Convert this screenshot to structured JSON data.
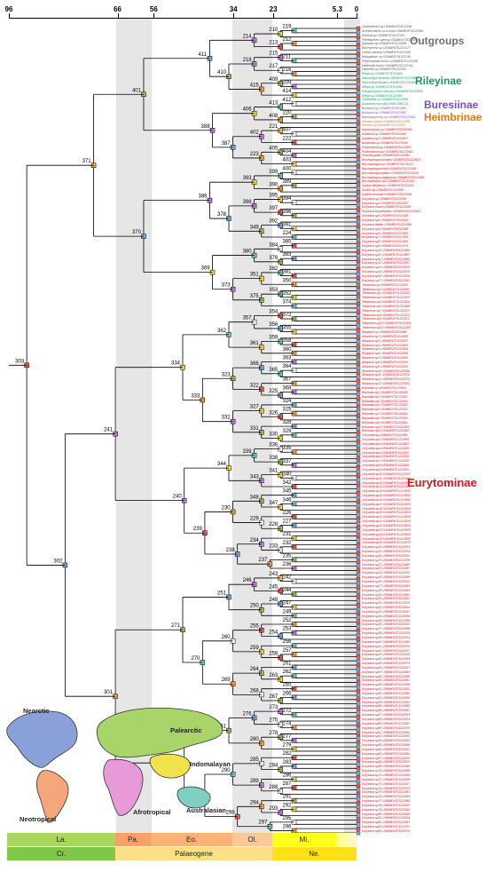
{
  "axis": {
    "ticks": [
      {
        "label": "96",
        "age": 96
      },
      {
        "label": "66",
        "age": 66
      },
      {
        "label": "56",
        "age": 56
      },
      {
        "label": "34",
        "age": 34
      },
      {
        "label": "23",
        "age": 23
      },
      {
        "label": "5.3",
        "age": 5.3
      },
      {
        "label": "0",
        "age": 0
      }
    ]
  },
  "groups": {
    "outgroups": "Outgroups",
    "rileyinae": "Rileyinae",
    "buresiinae": "Buresiinae",
    "heimbrinae": "Heimbrinae",
    "eurytominae": "Eurytominae"
  },
  "node_labels": [
    "219",
    "210",
    "212",
    "213",
    "214",
    "211",
    "215",
    "216",
    "217",
    "218",
    "209",
    "409",
    "414",
    "415",
    "410",
    "411",
    "412",
    "413",
    "220",
    "408",
    "406",
    "407",
    "221",
    "222",
    "402",
    "404",
    "405",
    "403",
    "223",
    "387",
    "388",
    "401",
    "400",
    "399",
    "389",
    "390",
    "393",
    "394",
    "395",
    "396",
    "397",
    "398",
    "391",
    "392",
    "224",
    "349",
    "378",
    "386",
    "385",
    "384",
    "383",
    "379",
    "380",
    "381",
    "382",
    "350",
    "351",
    "352",
    "353",
    "374",
    "375",
    "373",
    "369",
    "370",
    "371",
    "372",
    "354",
    "355",
    "356",
    "357",
    "358",
    "359",
    "360",
    "361",
    "362",
    "363",
    "364",
    "365",
    "366",
    "367",
    "368",
    "225",
    "322",
    "323",
    "324",
    "325",
    "326",
    "327",
    "328",
    "329",
    "330",
    "331",
    "332",
    "333",
    "334",
    "335",
    "336",
    "337",
    "338",
    "339",
    "340",
    "341",
    "342",
    "343",
    "344",
    "345",
    "346",
    "347",
    "348",
    "226",
    "227",
    "228",
    "229",
    "230",
    "231",
    "232",
    "233",
    "234",
    "235",
    "236",
    "237",
    "238",
    "239",
    "240",
    "241",
    "242",
    "243",
    "244",
    "245",
    "246",
    "247",
    "248",
    "249",
    "250",
    "251",
    "252",
    "253",
    "254",
    "255",
    "256",
    "257",
    "258",
    "259",
    "260",
    "261",
    "262",
    "263",
    "264",
    "265",
    "266",
    "267",
    "268",
    "269",
    "270",
    "271",
    "272",
    "273",
    "274",
    "275",
    "276",
    "277",
    "278",
    "279",
    "280",
    "281",
    "282",
    "283",
    "284",
    "285",
    "286",
    "287",
    "288",
    "289",
    "290",
    "291",
    "292",
    "293",
    "294",
    "295",
    "296",
    "297",
    "298",
    "299",
    "300",
    "301",
    "302",
    "303",
    "304",
    "305",
    "306",
    "307",
    "308",
    "309",
    "310",
    "311",
    "312",
    "313",
    "314",
    "315",
    "316",
    "317",
    "318",
    "319",
    "320",
    "321"
  ],
  "taxa": [
    "Chalcedectus sp USNMENT01222995",
    "Acerbiochalcis sp nr keris USNMENT01222966",
    "Dirhinus sp USNMENT01222157",
    "Phlebopenes spinosa USNMENT01222860",
    "Epitranus sp USNMENT01223084",
    "Brachymeria sp USNMENT01222177",
    "Chalcis barbara USNMENT01222182",
    "Notaspidium sp USNMENT01222138",
    "Peltochalcidia bicolor USNMENT01222168",
    "Haltichella bicolor USNMENT01222162",
    "Halticella sp USNMENT01222163",
    "Rileya sp USNMENT01222866",
    "Macrorileya oecanthi USNMENT01222988",
    "Macrorileya flavipes USNMENT01222993",
    "Rileya sp USNMENT01222854",
    "Pseudotorymus cubensis USNMENT01222856",
    "Rileya sp USNMENT01222990",
    "Chalcidella sp USNMENT01222851",
    "Austrotorymus indus RMO-0000131",
    "Buresium sp USNMENT01222903",
    "Buresium sp USNMENT01222952",
    "Macrodasyceras sp USNMENT01222944",
    "Heimbra opaca USNMENT01222958",
    "Heimbra sp USNMENT01222935",
    "Aiolomorphus sp USNMENT01222905",
    "Axanthea sp USNMENT01222940",
    "Axanthea sp2 USNMENT01222947",
    "Aplatoides sp USNMENT01223050",
    "Prodecatoma sp USNMENT01222851",
    "Prodecatoma sp2 USNMENT01222962",
    "Ficomila gallae USNMENT01222845",
    "Bruchophagus funebris USNMENT01222928",
    "Bruchophagus sp USNMENT01223013",
    "Bruchophagus roddi USNMENT01222951",
    "Bruchophagus gibbus USNMENT01222918",
    "Bruchophagus platypterus USNMENT01222999",
    "Bruchophagus sp2 USNMENT01222942",
    "Systole albipennis USNMENT01222925",
    "Systole sp USNMENT01222926",
    "Systole coriandri USNMENT01223045",
    "Eurytoma sp USNMENT01222992",
    "Eurytoma sp2 USNMENT01222910",
    "Eurytoma rosae USNMENT01222930",
    "Eurytoma brunniventris USNMENT01222943",
    "Eurytoma sp3 USNMENT01222938",
    "Eurytoma sp4 USNMENT01223020",
    "Eurytoma tibialis USNMENT01222999",
    "Eurytoma sp5 USNMENT01222948",
    "Eurytoma sp6 USNMENT01222902",
    "Eurytoma sp7 USNMENT01222959",
    "Eurytoma sp8 USNMENT01222992",
    "Eurytoma sp9 USNMENT01222974",
    "Eurytoma sp10 USNMENT01222969",
    "Eurytoma sp11 USNMENT01222887",
    "Eurytoma sp12 USNMENT01223060",
    "Eurytoma sp13 USNMENT01222937",
    "Eurytoma sp14 USNMENT01222929",
    "Eurytoma sp15 USNMENT01223070",
    "Eurytoma sp16 USNMENT01222936",
    "Eurytoma sp17 USNMENT01222961",
    "Tetramesa sp USNMENT01222966",
    "Tetramesa sp2 USNMENT01222981",
    "Tetramesa sp3 USNMENT01222942",
    "Tetramesa sp4 USNMENT01222905",
    "Tetramesa sp5 USNMENT01222924",
    "Tetramesa sp6 USNMENT01222988",
    "Tetramesa sp7 USNMENT01222937",
    "Tetramesa sp8 USNMENT01222922",
    "Tetramesa sp9 USNMENT01222972",
    "Tetramesa sp10 USNMENT01222930",
    "Tetramesa sp11 USNMENT01222947",
    "Nikanoria sp USNMENT01222996",
    "Nikanoria sp2 USNMENT01222986",
    "Nikanoria sp3 USNMENT01222917",
    "Nikanoria sp4 USNMENT01222980",
    "Nikanoria sp5 USNMENT01222954",
    "Nikanoria sp6 USNMENT01222956",
    "Nikanoria sp7 USNMENT01222939",
    "Nikanoria sp8 USNMENT01222933",
    "Nikanoria sp9 USNMENT01222941",
    "Nikanoria sp10 USNMENT01222946",
    "Nikanoria sp11 USNMENT01222936",
    "Nikanoria sp12 USNMENT01222971",
    "Nikanoria sp13 USNMENT01222952",
    "Bephrata sp USNMENT01222964",
    "Bephrata sp2 USNMENT01222958",
    "Bephrata sp3 USNMENT01222921",
    "Bephrata sp4 USNMENT01222919",
    "Bephrata sp5 USNMENT01222925",
    "Bephrata sp6 USNMENT01222923",
    "Bephrata sp7 USNMENT01222924",
    "Bephrata sp8 USNMENT01222909",
    "Bephrata sp9 USNMENT01222984",
    "Bephrata sp10 USNMENT01222943",
    "Bephrata sp11 USNMENT01222952",
    "Chryseida sp USNMENT01222939",
    "Chryseida sp2 USNMENT01222906",
    "Chryseida sp3 USNMENT01222967",
    "Chryseida sp4 USNMENT01222940",
    "Chryseida sp5 USNMENT01222912",
    "Chryseida sp6 USNMENT01222935",
    "Chryseida sp7 USNMENT01222915",
    "Chryseida sp8 USNMENT01222944",
    "Chryseida sp9 USNMENT01222970",
    "Chryseida sp10 USNMENT01222921",
    "Chryseida sp11 USNMENT01222985",
    "Chryseida sp12 USNMENT01222950",
    "Chryseida sp13 USNMENT01222929",
    "Chryseida sp14 USNMENT01222943",
    "Chryseida sp15 USNMENT01222902",
    "Chryseida sp16 USNMENT01222992",
    "Chryseida sp17 USNMENT01222926",
    "Chryseida sp18 USNMENT01222964",
    "Chryseida sp19 USNMENT01222953",
    "Chryseida sp20 USNMENT01222934",
    "Chryseida sp21 USNMENT01222916",
    "Chryseida sp22 USNMENT01222904",
    "Chryseida sp23 USNMENT01222960",
    "Chryseida sp24 USNMENT01222926",
    "Chryseida sp25 USNMENT01222982",
    "Chryseida sp26 USNMENT01222972",
    "Eurytoma sp18 USNMENT01222934",
    "Eurytoma sp19 USNMENT01222925",
    "Eurytoma sp20 USNMENT01222916",
    "Eurytoma sp21 USNMENT01222978",
    "Eurytoma sp22 USNMENT01222983",
    "Eurytoma sp23 USNMENT01222957",
    "Eurytoma sp24 USNMENT01222922",
    "Eurytoma sp25 USNMENT01222999",
    "Eurytoma sp26 USNMENT01222910",
    "Eurytoma sp27 USNMENT01222935",
    "Eurytoma sp28 USNMENT01222948",
    "Eurytoma sp29 USNMENT01222901",
    "Eurytoma sp30 USNMENT01222962",
    "Eurytoma sp31 USNMENT01222974",
    "Eurytoma sp32 USNMENT01222944",
    "Eurytoma sp33 USNMENT01222917",
    "Eurytoma sp34 USNMENT01222936",
    "Eurytoma sp35 USNMENT01222930",
    "Eurytoma sp36 USNMENT01222942",
    "Eurytoma sp37 USNMENT01222906",
    "Eurytoma sp38 USNMENT01222929",
    "Eurytoma sp39 USNMENT01222914",
    "Eurytoma sp40 USNMENT01222989",
    "Eurytoma sp41 USNMENT01222976",
    "Eurytoma sp42 USNMENT01222937",
    "Eurytoma sp43 USNMENT01222918",
    "Eurytoma sp44 USNMENT01222994",
    "Eurytoma sp45 USNMENT01222979",
    "Eurytoma sp46 USNMENT01222927",
    "Eurytoma sp47 USNMENT01222964",
    "Eurytoma sp48 USNMENT01222958",
    "Eurytoma sp49 USNMENT01222941",
    "Eurytoma sp50 USNMENT01222908",
    "Eurytoma sp51 USNMENT01222922",
    "Eurytoma sp52 USNMENT01222980",
    "Eurytoma sp53 USNMENT01222990",
    "Eurytoma sp54 USNMENT01222912",
    "Eurytoma sp55 USNMENT01222962",
    "Eurytoma sp56 USNMENT01222957",
    "Eurytoma sp57 USNMENT01222993",
    "Eurytoma sp58 USNMENT01222924",
    "Eurytoma sp59 USNMENT01222987",
    "Eurytoma sp60 USNMENT01222970",
    "Eurytoma sp61 USNMENT01222945",
    "Eurytoma sp62 USNMENT01222902",
    "Eurytoma sp63 USNMENT01222913",
    "Eurytoma sp64 USNMENT01222966",
    "Eurytoma sp65 USNMENT01222931",
    "Eurytoma sp66 USNMENT01222954",
    "Eurytoma sp67 USNMENT01222920",
    "Eurytoma sp68 USNMENT01222975",
    "Eurytoma sp69 USNMENT01222949",
    "Eurytoma sp70 USNMENT01222988",
    "Eurytoma sp71 USNMENT01222909",
    "Eurytoma sp72 USNMENT01222938",
    "Eurytoma sp73 USNMENT01222927",
    "Eurytoma sp74 USNMENT01222973",
    "Eurytoma sp75 USNMENT01222951",
    "Eurytoma sp76 USNMENT01222903",
    "Eurytoma sp77 USNMENT01222968",
    "Eurytoma sp78 USNMENT01222915",
    "Eurytoma sp79 USNMENT01222946",
    "Eurytoma sp80 USNMENT01222959",
    "Eurytoma sp81 USNMENT01222924",
    "Eurytoma sp82 USNMENT01222997",
    "Eurytoma sp83 USNMENT01222911",
    "Eurytoma sp84 USNMENT01222976"
  ],
  "map": {
    "regions": [
      {
        "name": "Nearctic",
        "color": "#8aa0d8"
      },
      {
        "name": "Palearctic",
        "color": "#a8d46a"
      },
      {
        "name": "Indomalayan",
        "color": "#f0e24a"
      },
      {
        "name": "Neotropical",
        "color": "#f4a77a"
      },
      {
        "name": "Afrotropical",
        "color": "#e89ad8"
      },
      {
        "name": "Australasian",
        "color": "#7fcfc2"
      }
    ]
  },
  "timescale": {
    "epochs": [
      {
        "label": "La.",
        "color": "#a9d65e"
      },
      {
        "label": "Pa.",
        "color": "#f6a06c"
      },
      {
        "label": "Eo.",
        "color": "#f8b27a"
      },
      {
        "label": "Ol.",
        "color": "#fbc99a"
      },
      {
        "label": "Mi.",
        "color": "#ffff1a"
      },
      {
        "label": "",
        "color": "#ffff99"
      },
      {
        "label": "",
        "color": "#fff7c2"
      }
    ],
    "periods": [
      {
        "label": "Cr.",
        "color": "#7fc64b"
      },
      {
        "label": "Palaeogene",
        "color": "#fbe08a"
      },
      {
        "label": "Ne.",
        "color": "#ffe11a"
      }
    ]
  },
  "colors": {
    "outgroup": "#555555",
    "rileyinae": "#1a9b5a",
    "buresiinae": "#7b4fb8",
    "heimbrinae": "#e07b17",
    "eurytominae": "#e8101f"
  }
}
